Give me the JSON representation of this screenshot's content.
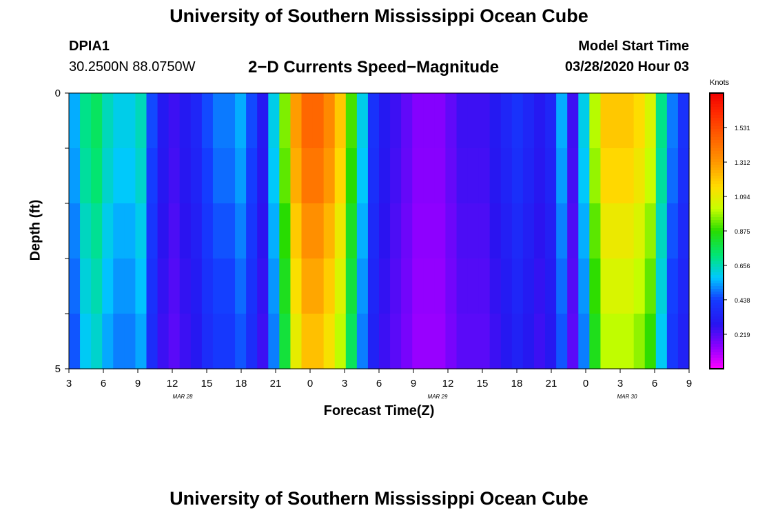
{
  "header": {
    "title": "University of Southern Mississippi Ocean Cube",
    "footer_title": "University of Southern Mississippi Ocean Cube",
    "station_id": "DPIA1",
    "station_coords": "30.2500N 88.0750W",
    "plot_title": "2−D Currents Speed−Magnitude",
    "model_start_label": "Model Start Time",
    "model_start_value": "03/28/2020 Hour 03"
  },
  "chart_data": {
    "type": "heatmap",
    "title": "2−D Currents Speed−Magnitude",
    "xlabel": "Forecast Time(Z)",
    "ylabel": "Depth (ft)",
    "x_tick_labels": [
      "3",
      "6",
      "9",
      "12",
      "15",
      "18",
      "21",
      "0",
      "3",
      "6",
      "9",
      "12",
      "15",
      "18",
      "21",
      "0",
      "3",
      "6",
      "9"
    ],
    "date_labels": [
      {
        "label": "MAR 28",
        "tick_index": 3.3
      },
      {
        "label": "MAR 29",
        "tick_index": 10.7
      },
      {
        "label": "MAR 30",
        "tick_index": 16.2
      }
    ],
    "y_tick_labels": [
      "0",
      "5"
    ],
    "ylim": [
      0,
      5
    ],
    "x_hours_range": [
      0,
      54
    ],
    "colorbar": {
      "unit": "Knots",
      "ticks": [
        "1.531",
        "1.312",
        "1.094",
        "0.875",
        "0.656",
        "0.438",
        "0.219"
      ],
      "tick_values": [
        1.531,
        1.312,
        1.094,
        0.875,
        0.656,
        0.438,
        0.219
      ],
      "range": [
        0,
        1.75
      ]
    },
    "depth_layers": 5,
    "speed_profile_knots": [
      0.55,
      0.7,
      0.75,
      0.65,
      0.6,
      0.6,
      0.65,
      0.45,
      0.3,
      0.25,
      0.3,
      0.35,
      0.45,
      0.5,
      0.5,
      0.55,
      0.45,
      0.3,
      0.6,
      0.95,
      1.3,
      1.45,
      1.45,
      1.35,
      1.2,
      0.9,
      0.6,
      0.4,
      0.3,
      0.25,
      0.2,
      0.15,
      0.15,
      0.15,
      0.2,
      0.25,
      0.25,
      0.25,
      0.3,
      0.35,
      0.4,
      0.35,
      0.3,
      0.35,
      0.55,
      0.25,
      0.6,
      1.0,
      1.2,
      1.2,
      1.2,
      1.15,
      1.05,
      0.7,
      0.5,
      0.4
    ],
    "layer_factor": [
      1.0,
      0.97,
      0.92,
      0.88,
      0.84
    ]
  }
}
